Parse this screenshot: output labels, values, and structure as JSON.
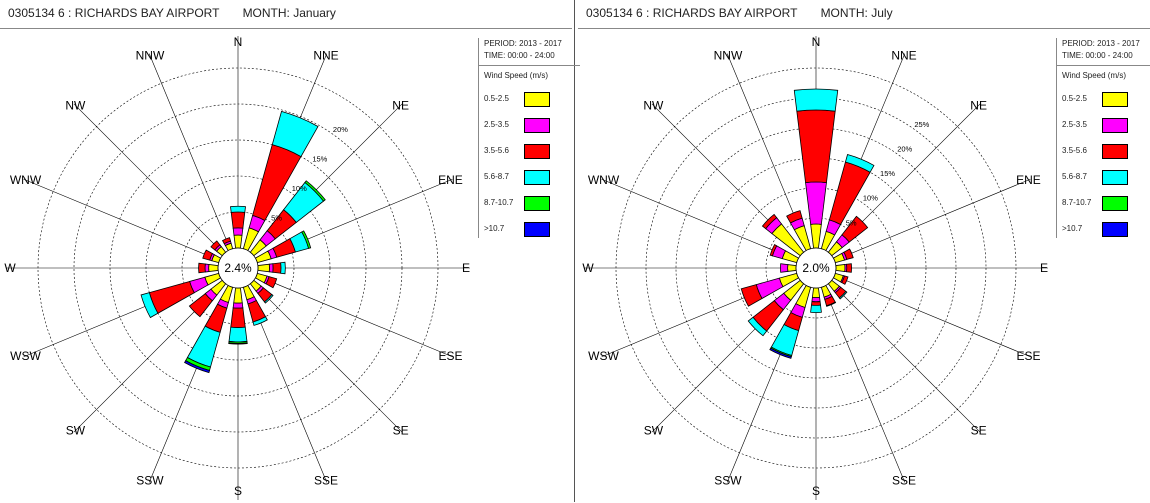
{
  "legend": {
    "title": "Wind Speed (m/s)",
    "bins": [
      {
        "label": "0.5-2.5",
        "color": "#ffff00"
      },
      {
        "label": "2.5-3.5",
        "color": "#ff00ff"
      },
      {
        "label": "3.5-5.6",
        "color": "#ff0000"
      },
      {
        "label": "5.6-8.7",
        "color": "#00ffff"
      },
      {
        "label": "8.7-10.7",
        "color": "#00ff00"
      },
      {
        "label": ">10.7",
        "color": "#0000ff"
      }
    ]
  },
  "directions": [
    "N",
    "NNE",
    "NE",
    "ENE",
    "E",
    "ESE",
    "SE",
    "SSE",
    "S",
    "SSW",
    "SW",
    "WSW",
    "W",
    "WNW",
    "NW",
    "NNW"
  ],
  "panels": [
    {
      "title": "0305134 6 : RICHARDS BAY AIRPORT",
      "month": "MONTH: January",
      "period": "PERIOD: 2013 - 2017",
      "time": "TIME: 00:00 - 24:00",
      "calm": "2.4%"
    },
    {
      "title": "0305134 6 : RICHARDS BAY AIRPORT",
      "month": "MONTH: July",
      "period": "PERIOD: 2013 - 2017",
      "time": "TIME: 00:00 - 24:00",
      "calm": "2.0%"
    }
  ],
  "chart_data": [
    {
      "type": "wind-rose",
      "title": "0305134 6 : RICHARDS BAY AIRPORT",
      "subtitle": "MONTH: January",
      "calm_percent": 2.4,
      "rings": [
        5,
        10,
        15,
        20
      ],
      "ring_labels": [
        "5%",
        "10%",
        "15%",
        "20%"
      ],
      "r_max": 25,
      "series_names": [
        "0.5-2.5",
        "2.5-3.5",
        "3.5-5.6",
        "5.6-8.7",
        "8.7-10.7",
        ">10.7"
      ],
      "cumulative_percent": {
        "N": [
          1.8,
          2.8,
          5.0,
          5.8,
          5.8,
          5.8
        ],
        "NNE": [
          3.0,
          4.8,
          15.0,
          19.8,
          19.8,
          19.8
        ],
        "NE": [
          2.2,
          3.8,
          7.5,
          12.3,
          12.6,
          12.6
        ],
        "ENE": [
          2.0,
          2.8,
          5.5,
          7.4,
          7.7,
          7.7
        ],
        "E": [
          1.6,
          2.1,
          3.2,
          3.8,
          3.8,
          3.8
        ],
        "ESE": [
          1.4,
          1.7,
          2.8,
          2.8,
          2.8,
          2.8
        ],
        "SE": [
          1.3,
          1.7,
          3.2,
          3.4,
          3.4,
          3.4
        ],
        "SSE": [
          1.8,
          2.4,
          5.0,
          5.5,
          5.5,
          5.5
        ],
        "S": [
          2.1,
          2.8,
          5.5,
          7.5,
          7.7,
          7.8
        ],
        "SSW": [
          2.2,
          3.0,
          6.5,
          11.5,
          12.0,
          12.3
        ],
        "SW": [
          2.0,
          3.0,
          5.8,
          5.8,
          5.8,
          5.8
        ],
        "WSW": [
          2.0,
          4.2,
          10.0,
          11.2,
          11.2,
          11.2
        ],
        "W": [
          1.3,
          1.8,
          2.7,
          2.7,
          2.7,
          2.7
        ],
        "WNW": [
          1.0,
          1.3,
          2.3,
          2.3,
          2.3,
          2.3
        ],
        "NW": [
          1.0,
          1.3,
          2.0,
          2.0,
          2.0,
          2.0
        ],
        "NNW": [
          0.8,
          1.1,
          1.6,
          1.6,
          1.6,
          1.6
        ]
      }
    },
    {
      "type": "wind-rose",
      "title": "0305134 6 : RICHARDS BAY AIRPORT",
      "subtitle": "MONTH: July",
      "calm_percent": 2.0,
      "rings": [
        5,
        10,
        15,
        20,
        25
      ],
      "ring_labels": [
        "5%",
        "10%",
        "15%",
        "20%",
        "25%"
      ],
      "r_max": 30,
      "series_names": [
        "0.5-2.5",
        "2.5-3.5",
        "3.5-5.6",
        "5.6-8.7",
        "8.7-10.7",
        ">10.7"
      ],
      "cumulative_percent": {
        "N": [
          4.0,
          11.0,
          23.0,
          26.5,
          26.5,
          26.5
        ],
        "NNE": [
          3.0,
          5.0,
          15.0,
          16.3,
          16.3,
          16.3
        ],
        "NE": [
          2.2,
          3.7,
          7.6,
          7.6,
          7.6,
          7.6
        ],
        "ENE": [
          1.6,
          2.0,
          3.1,
          3.1,
          3.1,
          3.1
        ],
        "E": [
          1.5,
          1.8,
          2.6,
          2.6,
          2.6,
          2.6
        ],
        "ESE": [
          1.4,
          1.6,
          2.2,
          2.2,
          2.2,
          2.2
        ],
        "SE": [
          1.6,
          1.9,
          3.0,
          3.2,
          3.2,
          3.2
        ],
        "SSE": [
          1.7,
          2.1,
          3.2,
          3.3,
          3.3,
          3.3
        ],
        "S": [
          1.6,
          2.3,
          2.9,
          4.1,
          4.1,
          4.1
        ],
        "SSW": [
          3.5,
          5.2,
          7.5,
          11.8,
          12.0,
          12.3
        ],
        "SW": [
          3.5,
          5.5,
          10.0,
          11.0,
          11.0,
          11.0
        ],
        "WSW": [
          3.0,
          7.0,
          9.6,
          9.6,
          9.6,
          9.6
        ],
        "W": [
          1.4,
          2.6,
          2.6,
          2.6,
          2.6,
          2.6
        ],
        "WNW": [
          2.5,
          4.2,
          4.6,
          4.6,
          4.6,
          4.6
        ],
        "NW": [
          6.0,
          7.3,
          8.0,
          8.0,
          8.0,
          8.0
        ],
        "NNW": [
          4.0,
          5.3,
          6.6,
          6.6,
          6.6,
          6.6
        ]
      }
    }
  ]
}
